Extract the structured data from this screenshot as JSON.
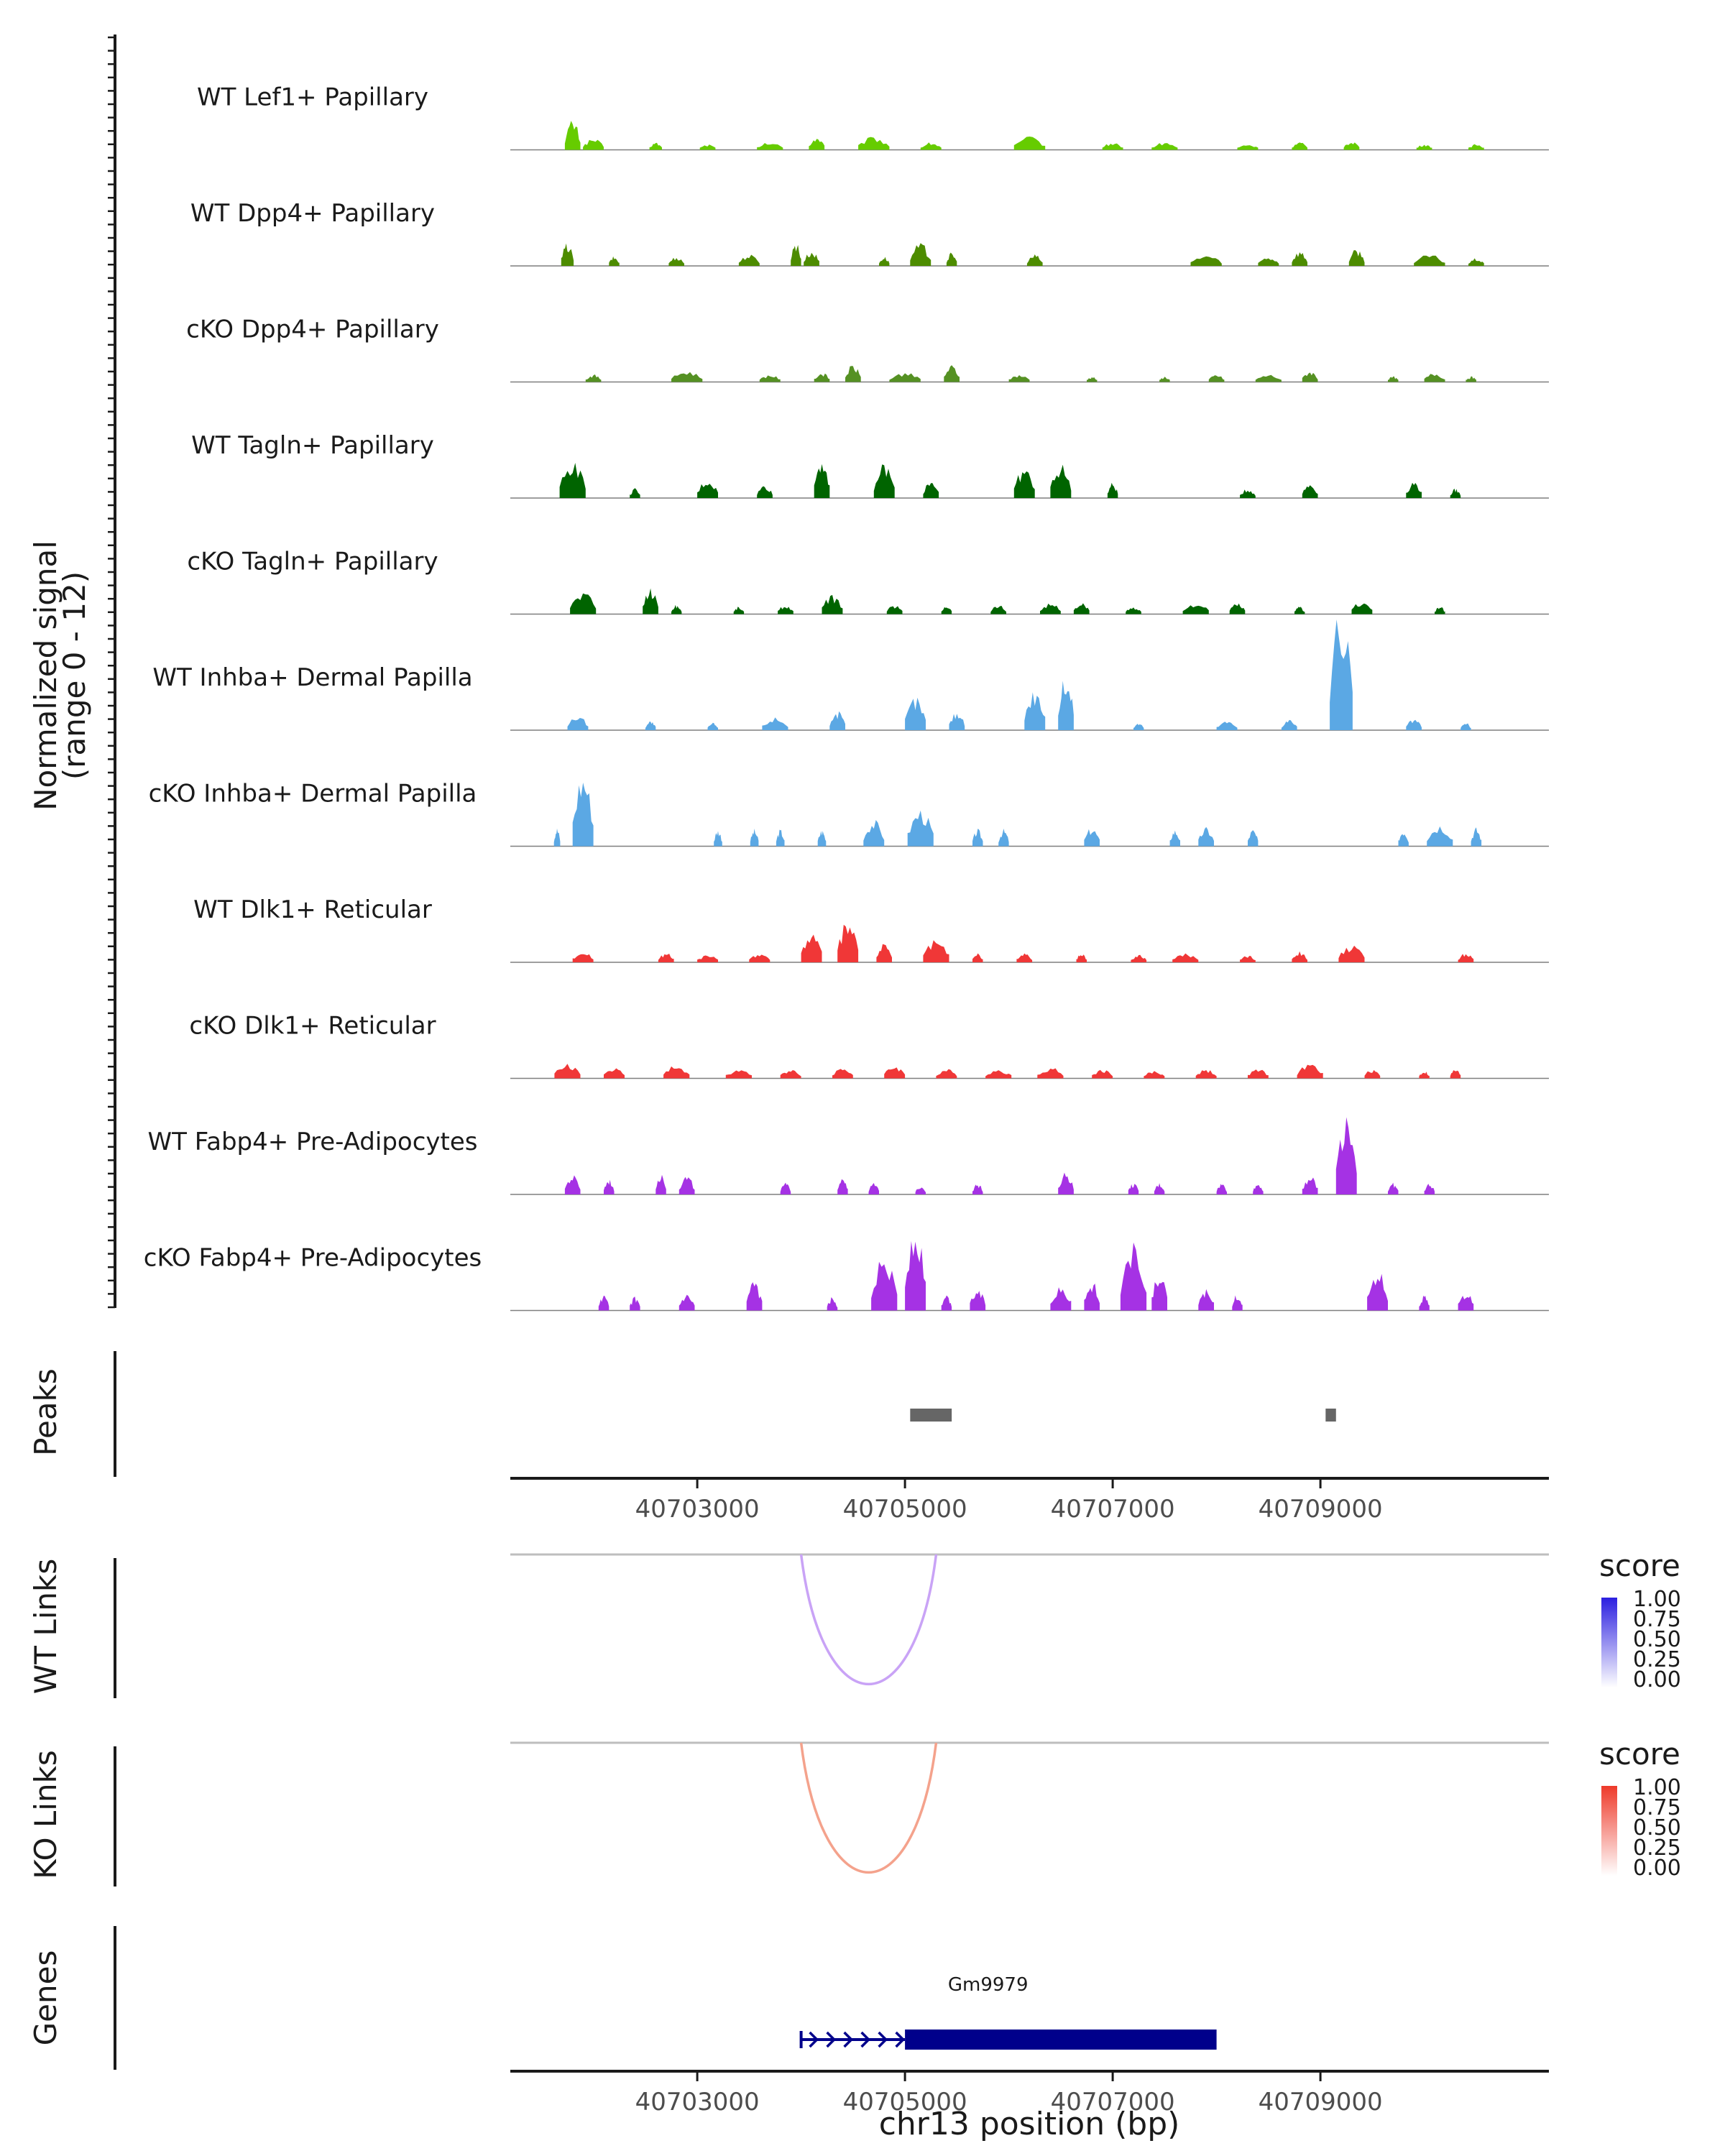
{
  "chart_data": {
    "type": "coverage-tracks",
    "y_axis_title": "Normalized signal",
    "y_axis_subtitle": "(range 0 - 12)",
    "y_range": [
      0,
      12
    ],
    "x_axis_title": "chr13 position (bp)",
    "x_range": [
      40701200,
      40711200
    ],
    "x_ticks": [
      40703000,
      40705000,
      40707000,
      40709000
    ],
    "x_tick_labels": [
      "40703000",
      "40705000",
      "40707000",
      "40709000"
    ],
    "region": [
      40701500,
      40710700
    ],
    "tracks": [
      {
        "name": "WT Lef1+ Papillary",
        "color": "#66cc00",
        "peaks": [
          [
            40701800,
            1.6,
            150
          ],
          [
            40702000,
            0.6,
            200
          ],
          [
            40702600,
            0.4,
            120
          ],
          [
            40703100,
            0.3,
            150
          ],
          [
            40703700,
            0.4,
            250
          ],
          [
            40704150,
            0.7,
            150
          ],
          [
            40704700,
            0.7,
            300
          ],
          [
            40705250,
            0.4,
            200
          ],
          [
            40706200,
            0.7,
            300
          ],
          [
            40707000,
            0.4,
            200
          ],
          [
            40707500,
            0.4,
            250
          ],
          [
            40708300,
            0.3,
            200
          ],
          [
            40708800,
            0.4,
            150
          ],
          [
            40709300,
            0.5,
            150
          ],
          [
            40710000,
            0.3,
            150
          ],
          [
            40710500,
            0.3,
            150
          ]
        ]
      },
      {
        "name": "WT Dpp4+ Papillary",
        "color": "#4d8c00",
        "peaks": [
          [
            40701750,
            1.2,
            120
          ],
          [
            40702200,
            0.5,
            100
          ],
          [
            40702800,
            0.5,
            150
          ],
          [
            40703500,
            0.6,
            200
          ],
          [
            40703950,
            1.3,
            100
          ],
          [
            40704100,
            0.8,
            150
          ],
          [
            40704800,
            0.5,
            100
          ],
          [
            40705150,
            1.2,
            200
          ],
          [
            40705450,
            0.7,
            100
          ],
          [
            40706250,
            0.6,
            150
          ],
          [
            40707900,
            0.6,
            300
          ],
          [
            40708500,
            0.5,
            200
          ],
          [
            40708800,
            0.8,
            150
          ],
          [
            40709350,
            0.9,
            150
          ],
          [
            40710050,
            0.6,
            300
          ],
          [
            40710500,
            0.4,
            150
          ]
        ]
      },
      {
        "name": "cKO Dpp4+ Papillary",
        "color": "#559123",
        "peaks": [
          [
            40702000,
            0.4,
            150
          ],
          [
            40702900,
            0.6,
            300
          ],
          [
            40703700,
            0.4,
            200
          ],
          [
            40704200,
            0.5,
            150
          ],
          [
            40704500,
            0.9,
            150
          ],
          [
            40705000,
            0.5,
            300
          ],
          [
            40705450,
            0.9,
            150
          ],
          [
            40706100,
            0.4,
            200
          ],
          [
            40706800,
            0.3,
            100
          ],
          [
            40707500,
            0.3,
            100
          ],
          [
            40708000,
            0.4,
            150
          ],
          [
            40708500,
            0.4,
            250
          ],
          [
            40708900,
            0.6,
            150
          ],
          [
            40709700,
            0.3,
            100
          ],
          [
            40710100,
            0.5,
            200
          ],
          [
            40710450,
            0.3,
            100
          ]
        ]
      },
      {
        "name": "WT Tagln+ Papillary",
        "color": "#006400",
        "peaks": [
          [
            40701800,
            2.0,
            250
          ],
          [
            40702400,
            0.5,
            100
          ],
          [
            40703100,
            1.0,
            200
          ],
          [
            40703650,
            0.7,
            150
          ],
          [
            40704200,
            2.2,
            150
          ],
          [
            40704800,
            1.8,
            200
          ],
          [
            40705250,
            1.0,
            150
          ],
          [
            40706150,
            1.6,
            200
          ],
          [
            40706500,
            1.8,
            200
          ],
          [
            40707000,
            0.8,
            100
          ],
          [
            40708300,
            0.5,
            150
          ],
          [
            40708900,
            0.8,
            150
          ],
          [
            40709900,
            0.9,
            150
          ],
          [
            40710300,
            0.5,
            100
          ]
        ]
      },
      {
        "name": "cKO Tagln+ Papillary",
        "color": "#006400",
        "peaks": [
          [
            40701900,
            1.2,
            250
          ],
          [
            40702550,
            1.4,
            150
          ],
          [
            40702800,
            0.5,
            100
          ],
          [
            40703400,
            0.4,
            100
          ],
          [
            40703850,
            0.5,
            150
          ],
          [
            40704300,
            1.0,
            200
          ],
          [
            40704900,
            0.5,
            150
          ],
          [
            40705400,
            0.5,
            100
          ],
          [
            40705900,
            0.5,
            150
          ],
          [
            40706400,
            0.6,
            200
          ],
          [
            40706700,
            0.6,
            150
          ],
          [
            40707200,
            0.4,
            150
          ],
          [
            40707800,
            0.6,
            250
          ],
          [
            40708200,
            0.6,
            150
          ],
          [
            40708800,
            0.4,
            100
          ],
          [
            40709400,
            0.7,
            200
          ],
          [
            40710150,
            0.4,
            100
          ]
        ]
      },
      {
        "name": "WT Inhba+ Dermal Papilla",
        "color": "#5ba8e4",
        "peaks": [
          [
            40701850,
            0.8,
            200
          ],
          [
            40702550,
            0.5,
            100
          ],
          [
            40703150,
            0.4,
            100
          ],
          [
            40703750,
            0.7,
            250
          ],
          [
            40704350,
            1.0,
            150
          ],
          [
            40705100,
            1.8,
            200
          ],
          [
            40705500,
            1.0,
            150
          ],
          [
            40706250,
            2.2,
            200
          ],
          [
            40706550,
            3.0,
            150
          ],
          [
            40707250,
            0.4,
            100
          ],
          [
            40708100,
            0.5,
            200
          ],
          [
            40708700,
            0.6,
            150
          ],
          [
            40709200,
            6.5,
            220
          ],
          [
            40709900,
            0.6,
            150
          ],
          [
            40710400,
            0.4,
            100
          ]
        ]
      },
      {
        "name": "cKO Inhba+ Dermal Papilla",
        "color": "#5ba8e4",
        "peaks": [
          [
            40701650,
            1.0,
            60
          ],
          [
            40701900,
            4.0,
            200
          ],
          [
            40703200,
            0.9,
            80
          ],
          [
            40703550,
            0.9,
            80
          ],
          [
            40703800,
            0.9,
            80
          ],
          [
            40704200,
            0.9,
            80
          ],
          [
            40704700,
            1.4,
            200
          ],
          [
            40705150,
            2.0,
            250
          ],
          [
            40705700,
            0.9,
            100
          ],
          [
            40705950,
            0.9,
            100
          ],
          [
            40706800,
            1.0,
            150
          ],
          [
            40707600,
            0.9,
            100
          ],
          [
            40707900,
            1.0,
            150
          ],
          [
            40708350,
            0.9,
            100
          ],
          [
            40709800,
            0.9,
            100
          ],
          [
            40710150,
            1.2,
            250
          ],
          [
            40710500,
            1.0,
            100
          ]
        ]
      },
      {
        "name": "WT Dlk1+ Reticular",
        "color": "#f03737",
        "peaks": [
          [
            40701900,
            0.6,
            200
          ],
          [
            40702700,
            0.5,
            150
          ],
          [
            40703100,
            0.4,
            200
          ],
          [
            40703600,
            0.5,
            200
          ],
          [
            40704100,
            1.6,
            200
          ],
          [
            40704450,
            2.2,
            200
          ],
          [
            40704800,
            1.0,
            150
          ],
          [
            40705300,
            1.2,
            250
          ],
          [
            40705700,
            0.5,
            100
          ],
          [
            40706150,
            0.5,
            150
          ],
          [
            40706700,
            0.5,
            100
          ],
          [
            40707250,
            0.4,
            150
          ],
          [
            40707700,
            0.5,
            250
          ],
          [
            40708300,
            0.4,
            150
          ],
          [
            40708800,
            0.6,
            150
          ],
          [
            40709300,
            0.9,
            250
          ],
          [
            40710400,
            0.5,
            150
          ]
        ]
      },
      {
        "name": "cKO Dlk1+ Reticular",
        "color": "#f03737",
        "peaks": [
          [
            40701750,
            0.8,
            250
          ],
          [
            40702200,
            0.6,
            200
          ],
          [
            40702800,
            0.7,
            250
          ],
          [
            40703400,
            0.5,
            250
          ],
          [
            40703900,
            0.5,
            200
          ],
          [
            40704400,
            0.6,
            200
          ],
          [
            40704900,
            0.7,
            200
          ],
          [
            40705400,
            0.5,
            200
          ],
          [
            40705900,
            0.5,
            250
          ],
          [
            40706400,
            0.6,
            250
          ],
          [
            40706900,
            0.5,
            200
          ],
          [
            40707400,
            0.4,
            200
          ],
          [
            40707900,
            0.5,
            200
          ],
          [
            40708400,
            0.5,
            200
          ],
          [
            40708900,
            0.8,
            250
          ],
          [
            40709500,
            0.5,
            150
          ],
          [
            40710000,
            0.4,
            100
          ],
          [
            40710300,
            0.5,
            100
          ]
        ]
      },
      {
        "name": "WT Fabp4+ Pre-Adipocytes",
        "color": "#a532e4",
        "peaks": [
          [
            40701800,
            1.0,
            150
          ],
          [
            40702150,
            0.8,
            100
          ],
          [
            40702650,
            1.2,
            100
          ],
          [
            40702900,
            1.0,
            150
          ],
          [
            40703850,
            0.6,
            100
          ],
          [
            40704400,
            1.0,
            100
          ],
          [
            40704700,
            0.6,
            100
          ],
          [
            40705150,
            0.5,
            100
          ],
          [
            40705700,
            0.6,
            100
          ],
          [
            40706550,
            1.2,
            150
          ],
          [
            40707200,
            0.6,
            100
          ],
          [
            40707450,
            0.6,
            100
          ],
          [
            40708050,
            0.6,
            100
          ],
          [
            40708400,
            0.6,
            100
          ],
          [
            40708900,
            1.0,
            150
          ],
          [
            40709250,
            4.5,
            200
          ],
          [
            40709700,
            0.6,
            100
          ],
          [
            40710050,
            0.6,
            100
          ]
        ]
      },
      {
        "name": "cKO Fabp4+ Pre-Adipocytes",
        "color": "#a532e4",
        "peaks": [
          [
            40702100,
            0.8,
            100
          ],
          [
            40702400,
            0.7,
            100
          ],
          [
            40702900,
            0.8,
            150
          ],
          [
            40703550,
            1.5,
            150
          ],
          [
            40704300,
            0.7,
            100
          ],
          [
            40704800,
            3.0,
            250
          ],
          [
            40705100,
            4.5,
            200
          ],
          [
            40705400,
            0.8,
            100
          ],
          [
            40705700,
            1.2,
            150
          ],
          [
            40706500,
            1.4,
            200
          ],
          [
            40706800,
            1.6,
            150
          ],
          [
            40707200,
            3.5,
            250
          ],
          [
            40707450,
            2.0,
            150
          ],
          [
            40707900,
            1.2,
            150
          ],
          [
            40708200,
            0.9,
            100
          ],
          [
            40709550,
            2.2,
            200
          ],
          [
            40710000,
            0.8,
            100
          ],
          [
            40710400,
            1.0,
            150
          ]
        ]
      }
    ],
    "peaks_track": {
      "title": "Peaks",
      "color": "#666666",
      "ranges": [
        [
          40705050,
          40705450
        ],
        [
          40709050,
          40709150
        ]
      ]
    },
    "links": [
      {
        "title": "WT Links",
        "start": 40704000,
        "end": 40705300,
        "score": 0.3,
        "color": "#c9a3f6",
        "legend_title": "score",
        "legend_ticks": [
          "1.00",
          "0.75",
          "0.50",
          "0.25",
          "0.00"
        ],
        "legend_color": "#2b1fe0"
      },
      {
        "title": "KO Links",
        "start": 40704000,
        "end": 40705300,
        "score": 0.4,
        "color": "#f4a28c",
        "legend_title": "score",
        "legend_ticks": [
          "1.00",
          "0.75",
          "0.50",
          "0.25",
          "0.00"
        ],
        "legend_color": "#ee3a2a"
      }
    ],
    "genes": {
      "title": "Genes",
      "color": "#00008b",
      "items": [
        {
          "name": "Gm9979",
          "start": 40704000,
          "end": 40708000,
          "thick_start": 40705000,
          "strand": "+"
        }
      ]
    }
  }
}
